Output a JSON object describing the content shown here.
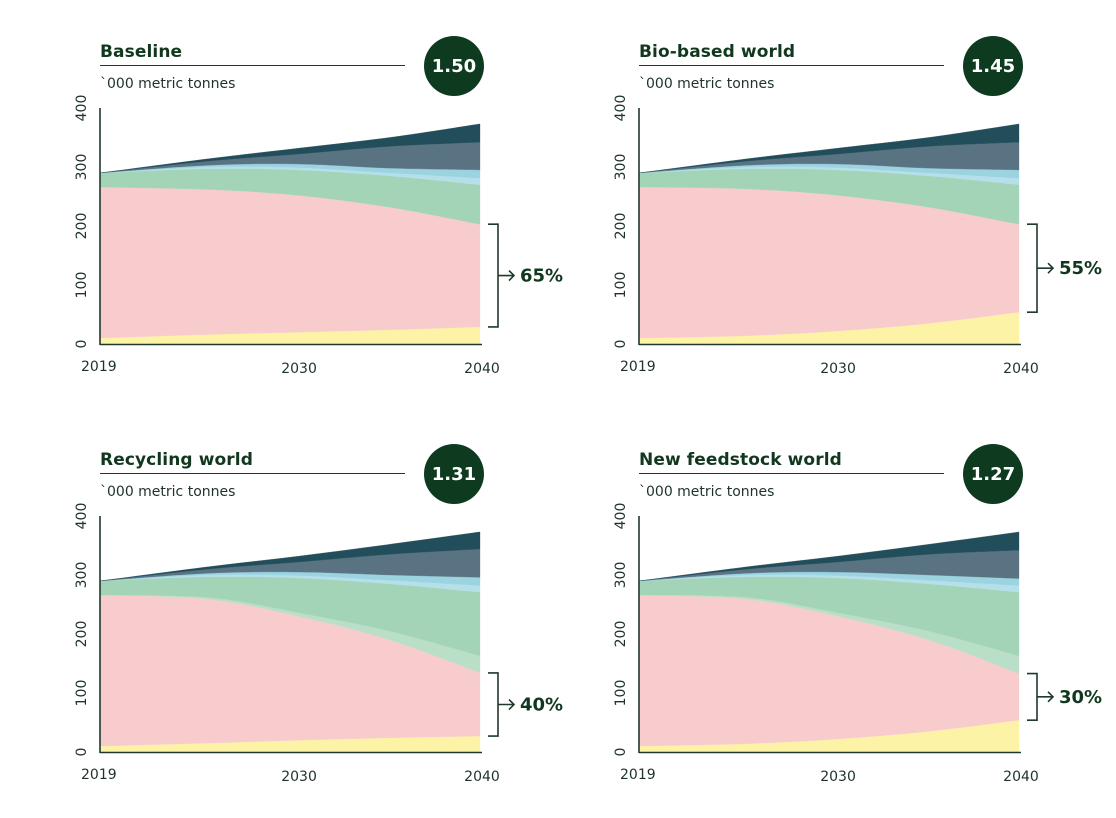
{
  "layer_colors": [
    "#fdf3a6",
    "#f8cccc",
    "#badfc8",
    "#a3d4b7",
    "#b5e0ea",
    "#9bd3e1",
    "#5a7382",
    "#224e5c"
  ],
  "chart_data": [
    {
      "type": "area",
      "title": "Baseline",
      "badge": "1.50",
      "ylabel": "`000 metric tonnes",
      "xlabel": "",
      "ylim": [
        0,
        400
      ],
      "yticks": [
        "0",
        "100",
        "200",
        "300",
        "400"
      ],
      "xticks": [
        "2019",
        "2030",
        "2040"
      ],
      "x": [
        2019,
        2025,
        2030,
        2035,
        2040
      ],
      "stacked_tops": [
        [
          10,
          16,
          20,
          24,
          29
        ],
        [
          266,
          262,
          252,
          232,
          203
        ],
        [
          266,
          262,
          252,
          232,
          203
        ],
        [
          290,
          297,
          295,
          285,
          270
        ],
        [
          290,
          300,
          299,
          290,
          281
        ],
        [
          290,
          303,
          305,
          298,
          295
        ],
        [
          290,
          310,
          322,
          335,
          342
        ],
        [
          290,
          314,
          332,
          350,
          373
        ]
      ],
      "bracket": {
        "from": 29,
        "to": 203
      },
      "annotation": "65%"
    },
    {
      "type": "area",
      "title": "Bio-based world",
      "badge": "1.45",
      "ylabel": "`000 metric tonnes",
      "xlabel": "",
      "ylim": [
        0,
        400
      ],
      "yticks": [
        "0",
        "100",
        "200",
        "300",
        "400"
      ],
      "xticks": [
        "2019",
        "2030",
        "2040"
      ],
      "x": [
        2019,
        2025,
        2030,
        2035,
        2040
      ],
      "stacked_tops": [
        [
          10,
          14,
          22,
          35,
          54
        ],
        [
          266,
          263,
          252,
          232,
          203
        ],
        [
          266,
          263,
          252,
          232,
          203
        ],
        [
          290,
          297,
          295,
          285,
          270
        ],
        [
          290,
          300,
          299,
          290,
          281
        ],
        [
          290,
          303,
          305,
          298,
          295
        ],
        [
          290,
          310,
          322,
          335,
          342
        ],
        [
          290,
          314,
          332,
          350,
          373
        ]
      ],
      "bracket": {
        "from": 54,
        "to": 203
      },
      "annotation": "55%"
    },
    {
      "type": "area",
      "title": "Recycling world",
      "badge": "1.31",
      "ylabel": "`000 metric tonnes",
      "xlabel": "",
      "ylim": [
        0,
        400
      ],
      "yticks": [
        "0",
        "100",
        "200",
        "300",
        "400"
      ],
      "xticks": [
        "2019",
        "2030",
        "2040"
      ],
      "x": [
        2019,
        2025,
        2030,
        2035,
        2040
      ],
      "stacked_tops": [
        [
          10,
          15,
          20,
          24,
          27
        ],
        [
          266,
          259,
          230,
          190,
          134
        ],
        [
          266,
          262,
          236,
          205,
          163
        ],
        [
          290,
          297,
          295,
          285,
          271
        ],
        [
          290,
          300,
          299,
          291,
          282
        ],
        [
          290,
          303,
          305,
          300,
          296
        ],
        [
          290,
          310,
          322,
          335,
          344
        ],
        [
          290,
          314,
          332,
          352,
          373
        ]
      ],
      "bracket": {
        "from": 27,
        "to": 134
      },
      "annotation": "40%"
    },
    {
      "type": "area",
      "title": "New feedstock world",
      "badge": "1.27",
      "ylabel": "`000 metric tonnes",
      "xlabel": "",
      "ylim": [
        0,
        400
      ],
      "yticks": [
        "0",
        "100",
        "200",
        "300",
        "400"
      ],
      "xticks": [
        "2019",
        "2030",
        "2040"
      ],
      "x": [
        2019,
        2025,
        2030,
        2035,
        2040
      ],
      "stacked_tops": [
        [
          10,
          14,
          22,
          35,
          54
        ],
        [
          266,
          259,
          230,
          190,
          133
        ],
        [
          266,
          262,
          236,
          205,
          163
        ],
        [
          290,
          297,
          295,
          285,
          271
        ],
        [
          290,
          300,
          299,
          291,
          282
        ],
        [
          290,
          303,
          305,
          300,
          294
        ],
        [
          290,
          310,
          322,
          335,
          342
        ],
        [
          290,
          314,
          332,
          352,
          373
        ]
      ],
      "bracket": {
        "from": 54,
        "to": 133
      },
      "annotation": "30%"
    }
  ]
}
